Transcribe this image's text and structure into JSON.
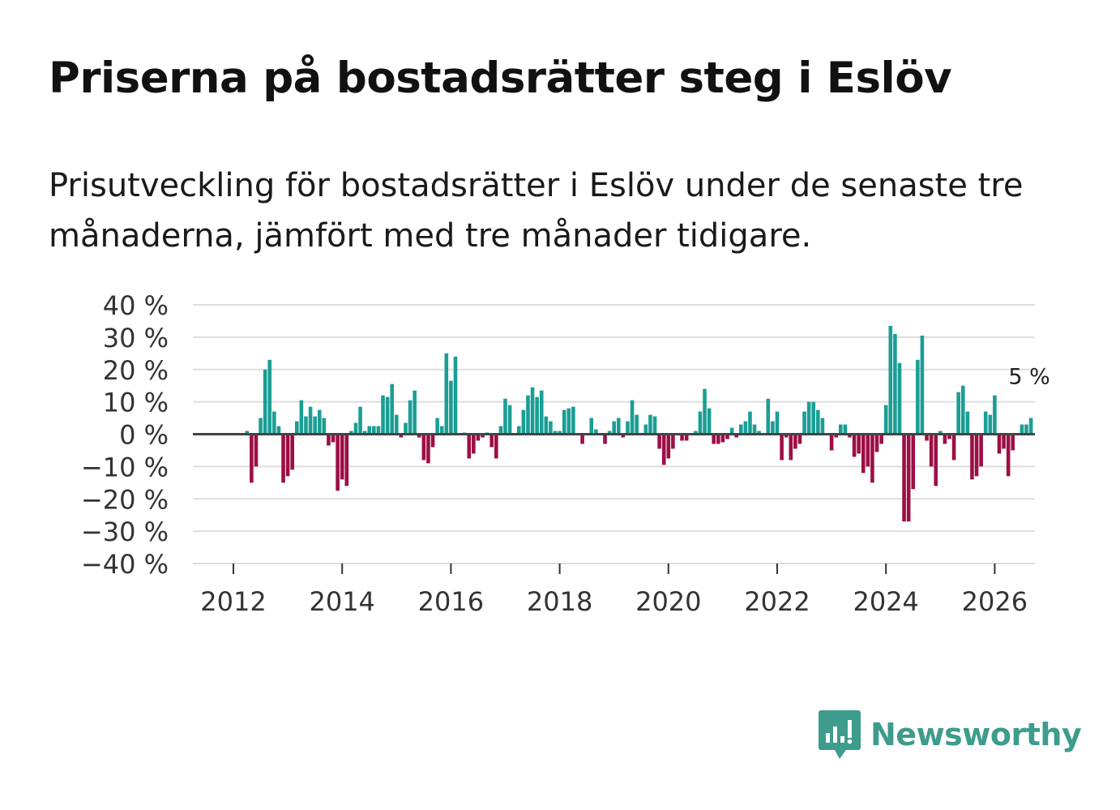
{
  "title": "Priserna på bostadsrätter steg i Eslöv",
  "subtitle": "Prisutveckling för bostadsrätter i Eslöv under de senaste tre månaderna, jämfört med tre månader tidigare.",
  "brand": {
    "name": "Newsworthy"
  },
  "colors": {
    "positive": "#1a9e95",
    "negative": "#9c0f45",
    "grid": "#dddddd",
    "zero": "#444444"
  },
  "chart_data": {
    "type": "bar",
    "title": "Priserna på bostadsrätter steg i Eslöv",
    "xlabel": "",
    "ylabel": "",
    "ylim": [
      -40,
      40
    ],
    "yticks": [
      40,
      30,
      20,
      10,
      0,
      -10,
      -20,
      -30,
      -40
    ],
    "ytick_labels": [
      "40 %",
      "30 %",
      "20 %",
      "10 %",
      "0 %",
      "−10 %",
      "−20 %",
      "−30 %",
      "−40 %"
    ],
    "xlim": [
      2011.75,
      2026.75
    ],
    "xticks": [
      2012,
      2014,
      2016,
      2018,
      2020,
      2022,
      2024,
      2026
    ],
    "xtick_labels": [
      "2012",
      "2014",
      "2016",
      "2018",
      "2020",
      "2022",
      "2024",
      "2026"
    ],
    "start": {
      "year": 2012,
      "month": 1
    },
    "annotation": {
      "text": "5 %",
      "value": 5
    },
    "values": [
      0,
      0,
      0,
      1,
      -15,
      -10,
      5,
      20,
      23,
      7,
      2.5,
      -15,
      -13,
      -11,
      4,
      10.5,
      5.5,
      8.5,
      5.5,
      7.5,
      5,
      -3.5,
      -2.5,
      -17.5,
      -14,
      -16,
      1,
      3.5,
      8.5,
      1,
      2.5,
      2.5,
      2.5,
      12,
      11.5,
      15.5,
      6,
      -1,
      3.5,
      10.5,
      13.5,
      -1,
      -8,
      -9,
      -4,
      5,
      2.5,
      25,
      16.5,
      24,
      0,
      0.5,
      -7.5,
      -6,
      -2,
      -1,
      0.5,
      -4,
      -7.5,
      2.5,
      11,
      9,
      0,
      2.5,
      7.5,
      12,
      14.5,
      11.5,
      13.5,
      5.5,
      4,
      1,
      1,
      7.5,
      8,
      8.5,
      0,
      -3,
      0,
      5,
      1.5,
      0,
      -3,
      1,
      4,
      5,
      -1,
      4,
      10.5,
      6,
      0,
      3,
      6,
      5.5,
      -4.5,
      -9.5,
      -7.5,
      -4.5,
      0,
      -2,
      -2,
      0,
      1,
      7,
      14,
      8,
      -3,
      -3,
      -2.5,
      -1.5,
      2,
      -1,
      3,
      4,
      7,
      3,
      1,
      0,
      11,
      4,
      7,
      -8,
      -1,
      -8,
      -4.5,
      -3,
      7,
      10,
      10,
      7.5,
      5,
      0,
      -5,
      -1,
      3,
      3,
      -1,
      -7,
      -6,
      -12,
      -10,
      -15,
      -5.5,
      -3,
      9,
      33.5,
      31,
      22,
      -27,
      -27,
      -17,
      23,
      30.5,
      -2,
      -10,
      -16,
      1,
      -3,
      -1.5,
      -8,
      13,
      15,
      7,
      -14,
      -13,
      -10,
      7,
      6,
      12,
      -6,
      -4.5,
      -13,
      -5,
      0,
      3,
      3,
      5
    ]
  }
}
